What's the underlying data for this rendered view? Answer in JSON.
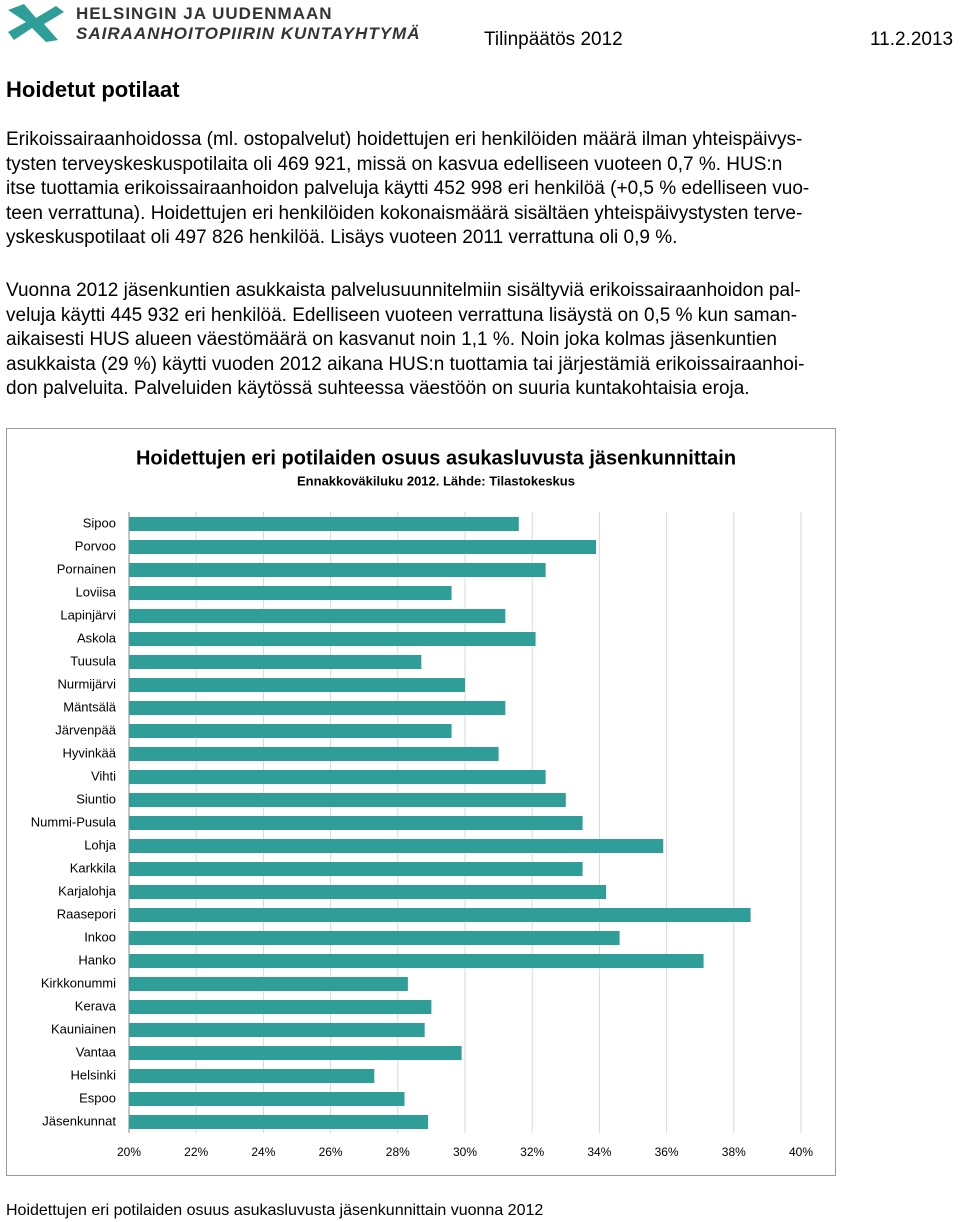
{
  "header": {
    "org_lines": [
      "HELSINGIN JA UUDENMAAN",
      "SAIRAANHOITOPIIRIN KUNTAYHTYMÄ"
    ],
    "doc_title": "Tilinpäätös 2012",
    "date": "11.2.2013"
  },
  "heading": "Hoidetut potilaat",
  "paragraphs": [
    [
      "Erikoissairaanhoidossa (ml. ostopalvelut) hoidettujen eri henkilöiden määrä ilman yhteispäivys-",
      "tysten terveyskeskuspotilaita oli 469 921, missä on kasvua edelliseen vuoteen 0,7 %. HUS:n",
      "itse tuottamia erikoissairaanhoidon palveluja käytti 452 998 eri henkilöä (+0,5 % edelliseen vuo-",
      "teen verrattuna). Hoidettujen eri henkilöiden kokonaismäärä sisältäen yhteispäivystysten terve-",
      "yskeskuspotilaat oli 497 826 henkilöä. Lisäys vuoteen 2011 verrattuna oli 0,9 %."
    ],
    [
      "Vuonna 2012 jäsenkuntien asukkaista palvelusuunnitelmiin sisältyviä erikoissairaanhoidon pal-",
      "veluja käytti 445 932 eri henkilöä. Edelliseen vuoteen verrattuna lisäystä on 0,5 % kun saman-",
      "aikaisesti HUS alueen väestömäärä on kasvanut noin 1,1 %. Noin joka kolmas jäsenkuntien",
      "asukkaista (29 %) käytti vuoden 2012 aikana HUS:n tuottamia tai järjestämiä erikoissairaanhoi-",
      "don palveluita. Palveluiden käytössä suhteessa väestöön on suuria kuntakohtaisia eroja."
    ]
  ],
  "chart_data": {
    "type": "hbar",
    "title": "Hoidettujen eri  potilaiden osuus asukasluvusta jäsenkunnittain",
    "subtitle": "Ennakkoväkiluku 2012. Lähde: Tilastokeskus",
    "categories": [
      "Sipoo",
      "Porvoo",
      "Pornainen",
      "Loviisa",
      "Lapinjärvi",
      "Askola",
      "Tuusula",
      "Nurmijärvi",
      "Mäntsälä",
      "Järvenpää",
      "Hyvinkää",
      "Vihti",
      "Siuntio",
      "Nummi-Pusula",
      "Lohja",
      "Karkkila",
      "Karjalohja",
      "Raasepori",
      "Inkoo",
      "Hanko",
      "Kirkkonummi",
      "Kerava",
      "Kauniainen",
      "Vantaa",
      "Helsinki",
      "Espoo",
      "Jäsenkunnat"
    ],
    "values": [
      31.6,
      33.9,
      32.4,
      29.6,
      31.2,
      32.1,
      28.7,
      30.0,
      31.2,
      29.6,
      31.0,
      32.4,
      33.0,
      33.5,
      35.9,
      33.5,
      34.2,
      38.5,
      34.6,
      37.1,
      28.3,
      29.0,
      28.8,
      29.9,
      27.3,
      28.2,
      28.9
    ],
    "color": "#2f9e99",
    "xlim": [
      20,
      40
    ],
    "xticks": [
      {
        "value": 20,
        "label": "20%"
      },
      {
        "value": 22,
        "label": "22%"
      },
      {
        "value": 24,
        "label": "24%"
      },
      {
        "value": 26,
        "label": "26%"
      },
      {
        "value": 28,
        "label": "28%"
      },
      {
        "value": 30,
        "label": "30%"
      },
      {
        "value": 32,
        "label": "32%"
      },
      {
        "value": 34,
        "label": "34%"
      },
      {
        "value": 36,
        "label": "36%"
      },
      {
        "value": 38,
        "label": "38%"
      },
      {
        "value": 40,
        "label": "40%"
      }
    ],
    "grid": true
  },
  "caption": "Hoidettujen eri potilaiden osuus asukasluvusta jäsenkunnittain vuonna 2012"
}
